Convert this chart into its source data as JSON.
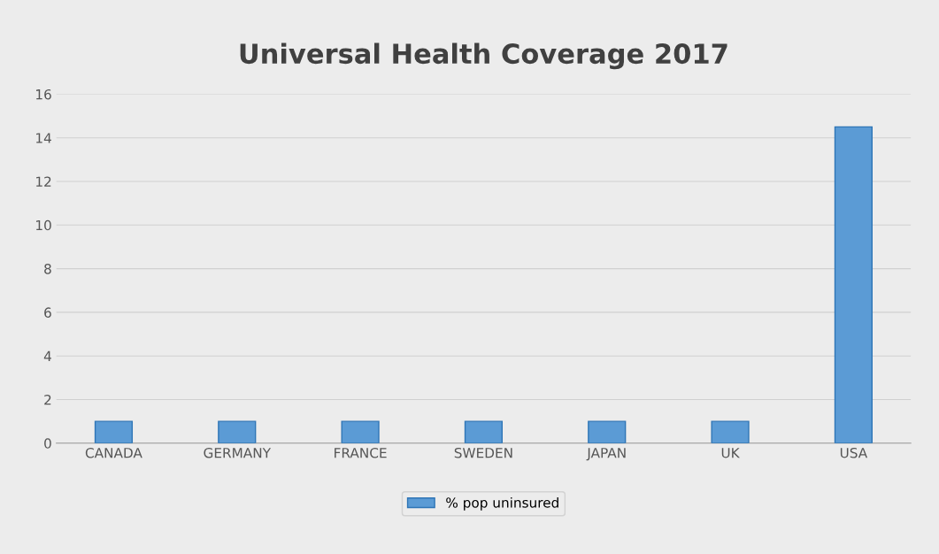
{
  "chart_data": {
    "type": "bar",
    "title": "Universal Health Coverage 2017",
    "categories": [
      "CANADA",
      "GERMANY",
      "FRANCE",
      "SWEDEN",
      "JAPAN",
      "UK",
      "USA"
    ],
    "series": [
      {
        "name": "% pop uninsured",
        "color": "#5b9bd5",
        "values": [
          1,
          1,
          1,
          1,
          1,
          1,
          14.5
        ]
      }
    ],
    "ylim": [
      0,
      16
    ],
    "yticks": [
      0,
      2,
      4,
      6,
      8,
      10,
      12,
      14,
      16
    ],
    "grid": "y",
    "legend": "bottom"
  }
}
